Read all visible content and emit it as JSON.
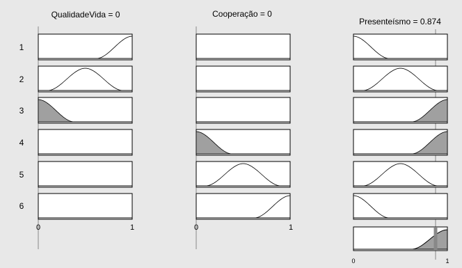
{
  "window": {
    "background": "#e8e8e8"
  },
  "inputs": [
    {
      "name": "QualidadeVida",
      "value": "0",
      "title": "QualidadeVida = 0",
      "value_marker": 0,
      "axis_ticks": [
        "0",
        "1"
      ]
    },
    {
      "name": "Cooperação",
      "value": "0",
      "title": "Cooperação = 0",
      "value_marker": 0,
      "axis_ticks": [
        "0",
        "1"
      ]
    }
  ],
  "output": {
    "name": "Presenteísmo",
    "value": "0.874",
    "title": "Presenteísmo = 0.874",
    "value_marker": 0.874,
    "axis_ticks": [
      "0",
      "1"
    ]
  },
  "rule_labels": [
    "1",
    "2",
    "3",
    "4",
    "5",
    "6"
  ],
  "rules": [
    {
      "mf": [
        "high",
        "none"
      ],
      "activation": [
        0,
        0
      ],
      "output_mf": "low",
      "output_fire": 0
    },
    {
      "mf": [
        "mid",
        "none"
      ],
      "activation": [
        0,
        0
      ],
      "output_mf": "mid",
      "output_fire": 0
    },
    {
      "mf": [
        "low",
        "none"
      ],
      "activation": [
        1,
        0
      ],
      "output_mf": "high",
      "output_fire": 1
    },
    {
      "mf": [
        "none",
        "low"
      ],
      "activation": [
        0,
        1
      ],
      "output_mf": "high",
      "output_fire": 1
    },
    {
      "mf": [
        "none",
        "mid"
      ],
      "activation": [
        0,
        0
      ],
      "output_mf": "mid",
      "output_fire": 0
    },
    {
      "mf": [
        "none",
        "high"
      ],
      "activation": [
        0,
        0
      ],
      "output_mf": "low",
      "output_fire": 0
    }
  ],
  "colors": {
    "fill": "#a0a0a0",
    "stroke": "#000000",
    "marker": "#888888",
    "box": "#ffffff"
  }
}
